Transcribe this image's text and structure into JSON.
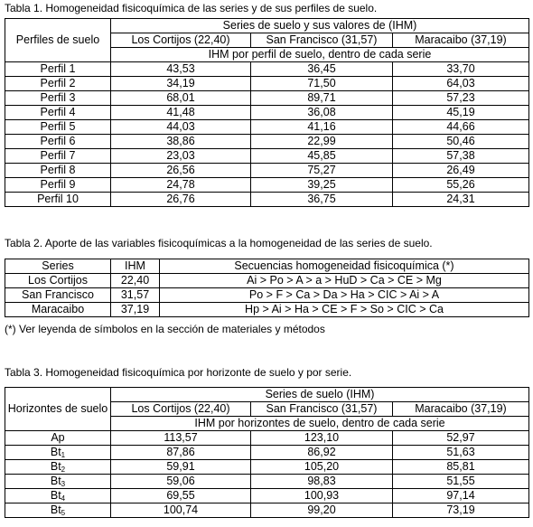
{
  "table1": {
    "caption": "Tabla 1. Homogeneidad fisicoquímica de las series y de sus perfiles de suelo.",
    "row_header": "Perfiles de suelo",
    "group_header": "Series de suelo y sus valores de (IHM)",
    "columns": [
      "Los Cortijos (22,40)",
      "San Francisco (31,57)",
      "Maracaibo (37,19)"
    ],
    "subheader": "IHM por perfil de suelo, dentro de cada serie",
    "rows": [
      {
        "label": "Perfil 1",
        "values": [
          "43,53",
          "36,45",
          "33,70"
        ]
      },
      {
        "label": "Perfil 2",
        "values": [
          "34,19",
          "71,50",
          "64,03"
        ]
      },
      {
        "label": "Perfil 3",
        "values": [
          "68,01",
          "89,71",
          "57,23"
        ]
      },
      {
        "label": "Perfil 4",
        "values": [
          "41,48",
          "36,08",
          "45,19"
        ]
      },
      {
        "label": "Perfil 5",
        "values": [
          "44,03",
          "41,16",
          "44,66"
        ]
      },
      {
        "label": "Perfil 6",
        "values": [
          "38,86",
          "22,99",
          "50,46"
        ]
      },
      {
        "label": "Perfil 7",
        "values": [
          "23,03",
          "45,85",
          "57,38"
        ]
      },
      {
        "label": "Perfil 8",
        "values": [
          "26,56",
          "75,27",
          "26,49"
        ]
      },
      {
        "label": "Perfil 9",
        "values": [
          "24,78",
          "39,25",
          "55,26"
        ]
      },
      {
        "label": "Perfil 10",
        "values": [
          "26,76",
          "36,75",
          "24,31"
        ]
      }
    ]
  },
  "table2": {
    "caption": "Tabla 2. Aporte de las variables fisicoquímicas a la homogeneidad de las series de  suelo.",
    "headers": [
      "Series",
      "IHM",
      "Secuencias homogeneidad fisicoquímica (*)"
    ],
    "rows": [
      {
        "series": "Los Cortijos",
        "ihm": "22,40",
        "sequence": "Ai > Po > A > a >  HuD > Ca > CE > Mg"
      },
      {
        "series": "San Francisco",
        "ihm": "31,57",
        "sequence": "Po > F > Ca > Da >  Ha > CIC > Ai > A"
      },
      {
        "series": "Maracaibo",
        "ihm": "37,19",
        "sequence": "Hp > Ai > Ha > CE >  F > So > CIC > Ca"
      }
    ],
    "footnote": "(*) Ver leyenda de símbolos en la sección de materiales y métodos"
  },
  "table3": {
    "caption": "Tabla 3. Homogeneidad fisicoquímica por horizonte de suelo y por serie.",
    "row_header": "Horizontes de suelo",
    "group_header": "Series de suelo (IHM)",
    "columns": [
      "Los Cortijos (22,40)",
      "San Francisco (31,57)",
      "Maracaibo (37,19)"
    ],
    "subheader": "IHM por horizontes de suelo, dentro de cada serie",
    "rows": [
      {
        "label": "Ap",
        "sub": "",
        "values": [
          "113,57",
          "123,10",
          "52,97"
        ]
      },
      {
        "label": "Bt",
        "sub": "1",
        "values": [
          "87,86",
          "86,92",
          "51,63"
        ]
      },
      {
        "label": "Bt",
        "sub": "2",
        "values": [
          "59,91",
          "105,20",
          "85,81"
        ]
      },
      {
        "label": "Bt",
        "sub": "3",
        "values": [
          "59,06",
          "98,83",
          "51,55"
        ]
      },
      {
        "label": "Bt",
        "sub": "4",
        "values": [
          "69,55",
          "100,93",
          "97,14"
        ]
      },
      {
        "label": "Bt",
        "sub": "5",
        "values": [
          "100,74",
          "99,20",
          "73,19"
        ]
      }
    ]
  }
}
